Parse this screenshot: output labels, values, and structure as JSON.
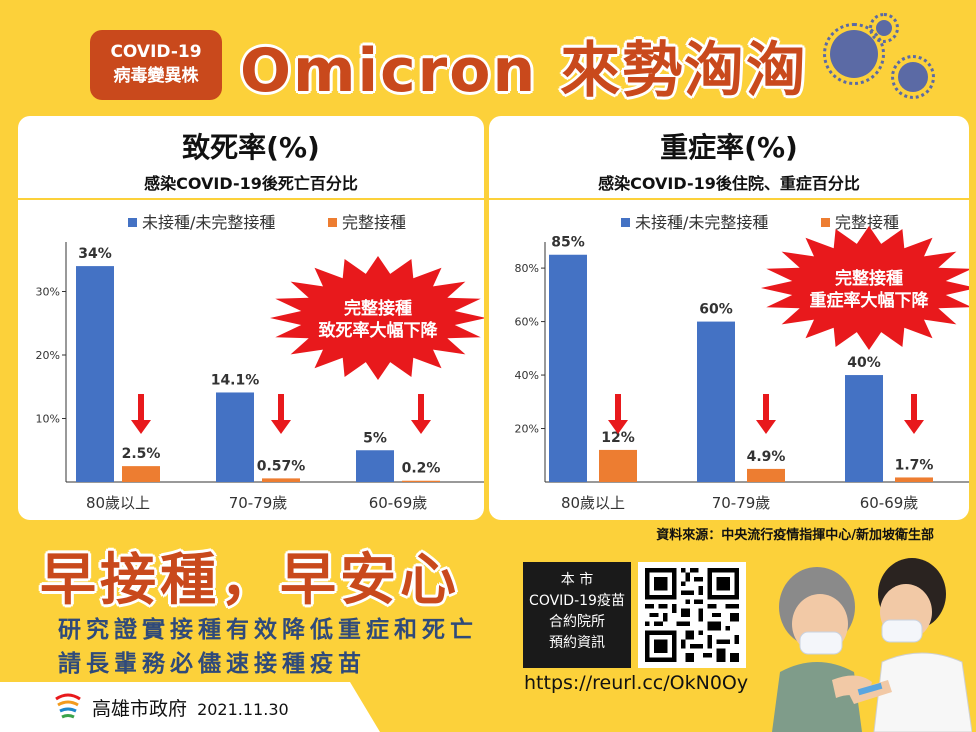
{
  "header": {
    "badge_line1": "COVID-19",
    "badge_line2": "病毒變異株",
    "title": "Omicron 來勢洶洶"
  },
  "panels": [
    {
      "title": "致死率(%)",
      "subtitle": "感染COVID-19後死亡百分比",
      "burst_line1": "完整接種",
      "burst_line2": "致死率大幅下降"
    },
    {
      "title": "重症率(%)",
      "subtitle": "感染COVID-19後住院、重症百分比",
      "burst_line1": "完整接種",
      "burst_line2": "重症率大幅下降"
    }
  ],
  "chart_data": [
    {
      "type": "bar",
      "categories": [
        "80歲以上",
        "70-79歲",
        "60-69歲"
      ],
      "series": [
        {
          "name": "未接種/未完整接種",
          "values": [
            34,
            14.1,
            5
          ],
          "labels": [
            "34%",
            "14.1%",
            "5%"
          ]
        },
        {
          "name": "完整接種",
          "values": [
            2.5,
            0.57,
            0.2
          ],
          "labels": [
            "2.5%",
            "0.57%",
            "0.2%"
          ]
        }
      ],
      "yticks": [
        "10%",
        "20%",
        "30%"
      ],
      "ytick_values": [
        10,
        20,
        30
      ],
      "ylim": [
        0,
        40
      ],
      "legend": "top"
    },
    {
      "type": "bar",
      "categories": [
        "80歲以上",
        "70-79歲",
        "60-69歲"
      ],
      "series": [
        {
          "name": "未接種/未完整接種",
          "values": [
            85,
            60,
            40
          ],
          "labels": [
            "85%",
            "60%",
            "40%"
          ]
        },
        {
          "name": "完整接種",
          "values": [
            12,
            4.9,
            1.7
          ],
          "labels": [
            "12%",
            "4.9%",
            "1.7%"
          ]
        }
      ],
      "yticks": [
        "20%",
        "40%",
        "60%",
        "80%"
      ],
      "ytick_values": [
        20,
        40,
        60,
        80
      ],
      "ylim": [
        0,
        95
      ],
      "legend": "top"
    }
  ],
  "colors": {
    "unvaccinated": "#4472c4",
    "vaccinated": "#ed7d31",
    "accent": "#c9491c",
    "arrow": "#e8191c",
    "background": "#fcd13a"
  },
  "source": "資料來源：中央流行疫情指揮中心/新加坡衛生部",
  "slogan": "早接種，早安心",
  "message_line1": "研究證實接種有效降低重症和死亡",
  "message_line2": "請長輩務必儘速接種疫苗",
  "booking": {
    "line1": "本 市",
    "line2": "COVID-19疫苗",
    "line3": "合約院所",
    "line4": "預約資訊"
  },
  "url": "https://reurl.cc/OkN0Oy",
  "footer": {
    "org": "高雄市政府",
    "date": "2021.11.30"
  },
  "icons": [
    "virus-icon",
    "qr-code-icon",
    "kaohsiung-logo-icon",
    "down-arrow-icon",
    "burst-icon"
  ]
}
